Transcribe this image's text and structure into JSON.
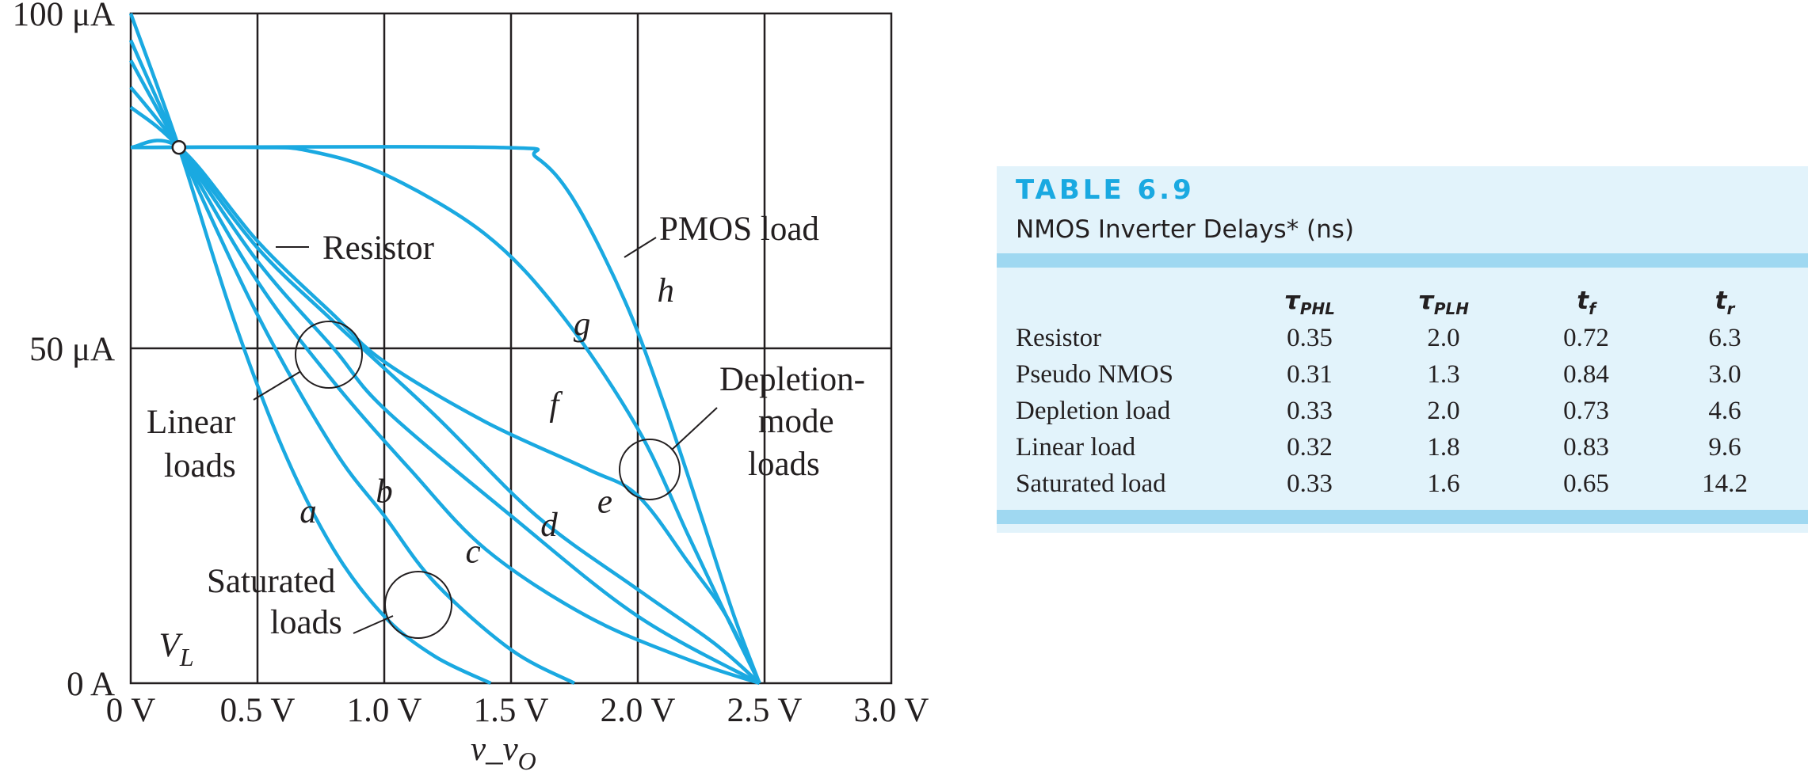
{
  "chart_data": {
    "type": "line",
    "xlabel": "v_v",
    "xlabel_sub": "O",
    "x_ticks": [
      "0 V",
      "0.5 V",
      "1.0 V",
      "1.5 V",
      "2.0 V",
      "2.5 V",
      "3.0 V"
    ],
    "x_tick_values": [
      0,
      0.5,
      1.0,
      1.5,
      2.0,
      2.5,
      3.0
    ],
    "y_ticks": [
      "0 A",
      "50 μA",
      "100 μA"
    ],
    "y_tick_values": [
      0,
      50,
      100
    ],
    "xlim": [
      0,
      3.0
    ],
    "ylim": [
      0,
      100
    ],
    "grid": true,
    "operating_point": {
      "x": 0.19,
      "y": 80
    },
    "series": [
      {
        "name": "a",
        "points": [
          [
            0,
            100
          ],
          [
            0.19,
            80
          ],
          [
            0.4,
            55
          ],
          [
            0.6,
            35
          ],
          [
            0.8,
            20
          ],
          [
            1.0,
            10
          ],
          [
            1.2,
            4
          ],
          [
            1.42,
            0
          ]
        ]
      },
      {
        "name": "b",
        "points": [
          [
            0,
            96
          ],
          [
            0.19,
            80
          ],
          [
            0.5,
            55
          ],
          [
            0.8,
            35
          ],
          [
            1.0,
            25
          ],
          [
            1.2,
            15
          ],
          [
            1.5,
            5
          ],
          [
            1.75,
            0
          ]
        ]
      },
      {
        "name": "c",
        "points": [
          [
            0,
            93
          ],
          [
            0.19,
            80
          ],
          [
            0.5,
            60
          ],
          [
            0.8,
            45
          ],
          [
            1.1,
            32
          ],
          [
            1.4,
            20
          ],
          [
            1.8,
            10
          ],
          [
            2.2,
            3.5
          ],
          [
            2.48,
            0
          ]
        ]
      },
      {
        "name": "d",
        "points": [
          [
            0,
            89
          ],
          [
            0.19,
            80
          ],
          [
            0.5,
            63
          ],
          [
            0.8,
            50
          ],
          [
            1.0,
            41
          ],
          [
            1.5,
            25
          ],
          [
            2.0,
            10
          ],
          [
            2.48,
            0
          ]
        ]
      },
      {
        "name": "e",
        "points": [
          [
            0,
            86
          ],
          [
            0.19,
            80
          ],
          [
            0.5,
            65
          ],
          [
            0.8,
            54
          ],
          [
            1.2,
            40
          ],
          [
            1.6,
            25
          ],
          [
            2.0,
            14
          ],
          [
            2.3,
            6
          ],
          [
            2.48,
            0
          ]
        ]
      },
      {
        "name": "f",
        "points": [
          [
            0,
            80
          ],
          [
            0.19,
            80
          ],
          [
            0.5,
            66
          ],
          [
            0.8,
            55
          ],
          [
            1.0,
            48
          ],
          [
            1.4,
            39
          ],
          [
            1.8,
            32
          ],
          [
            2.0,
            28
          ],
          [
            2.2,
            18
          ],
          [
            2.35,
            10
          ],
          [
            2.48,
            0
          ]
        ]
      },
      {
        "name": "g",
        "points": [
          [
            0,
            80
          ],
          [
            0.5,
            80
          ],
          [
            0.7,
            79.5
          ],
          [
            1.0,
            76
          ],
          [
            1.4,
            67
          ],
          [
            1.7,
            55
          ],
          [
            2.0,
            38
          ],
          [
            2.2,
            22
          ],
          [
            2.35,
            10
          ],
          [
            2.48,
            0
          ]
        ]
      },
      {
        "name": "h",
        "points": [
          [
            0,
            80
          ],
          [
            1.45,
            80
          ],
          [
            1.6,
            78.5
          ],
          [
            1.75,
            72
          ],
          [
            1.95,
            57
          ],
          [
            2.1,
            42
          ],
          [
            2.25,
            25
          ],
          [
            2.38,
            10
          ],
          [
            2.48,
            0
          ]
        ]
      }
    ],
    "curve_labels": [
      {
        "text": "a",
        "x": 0.7,
        "y": 24
      },
      {
        "text": "b",
        "x": 1.0,
        "y": 27
      },
      {
        "text": "c",
        "x": 1.35,
        "y": 18
      },
      {
        "text": "d",
        "x": 1.65,
        "y": 22
      },
      {
        "text": "e",
        "x": 1.87,
        "y": 25.5
      },
      {
        "text": "f",
        "x": 1.67,
        "y": 40
      },
      {
        "text": "g",
        "x": 1.78,
        "y": 52
      },
      {
        "text": "h",
        "x": 2.11,
        "y": 57
      },
      {
        "text": "V",
        "x": 0.18,
        "y": 4
      }
    ],
    "v_l_subscript": "L",
    "annotations": [
      {
        "id": "resistor",
        "lines": [
          "Resistor"
        ]
      },
      {
        "id": "pmos",
        "lines": [
          "PMOS load"
        ]
      },
      {
        "id": "linear",
        "lines": [
          "Linear",
          "loads"
        ]
      },
      {
        "id": "depletion",
        "lines": [
          "Depletion-",
          "mode",
          "loads"
        ]
      },
      {
        "id": "saturated",
        "lines": [
          "Saturated",
          "loads"
        ]
      }
    ],
    "colors": {
      "curve": "#1aa9e1",
      "grid": "#231f20",
      "text": "#231f20"
    }
  },
  "table": {
    "title_prefix": "TABLE",
    "title_number": "6.9",
    "subtitle": "NMOS Inverter Delays* (ns)",
    "headers": [
      {
        "main": "τ",
        "sub": "PHL"
      },
      {
        "main": "τ",
        "sub": "PLH"
      },
      {
        "main": "t",
        "sub": "f"
      },
      {
        "main": "t",
        "sub": "r"
      }
    ],
    "rows": [
      {
        "label": "Resistor",
        "values": [
          "0.35",
          "2.0",
          "0.72",
          "6.3"
        ]
      },
      {
        "label": "Pseudo NMOS",
        "values": [
          "0.31",
          "1.3",
          "0.84",
          "3.0"
        ]
      },
      {
        "label": "Depletion load",
        "values": [
          "0.33",
          "2.0",
          "0.73",
          "4.6"
        ]
      },
      {
        "label": "Linear load",
        "values": [
          "0.32",
          "1.8",
          "0.83",
          "9.6"
        ]
      },
      {
        "label": "Saturated load",
        "values": [
          "0.33",
          "1.6",
          "0.65",
          "14.2"
        ]
      }
    ],
    "colors": {
      "title": "#1aa9e1",
      "panel": "#e2f3fb",
      "band": "#9fd8f1"
    }
  }
}
